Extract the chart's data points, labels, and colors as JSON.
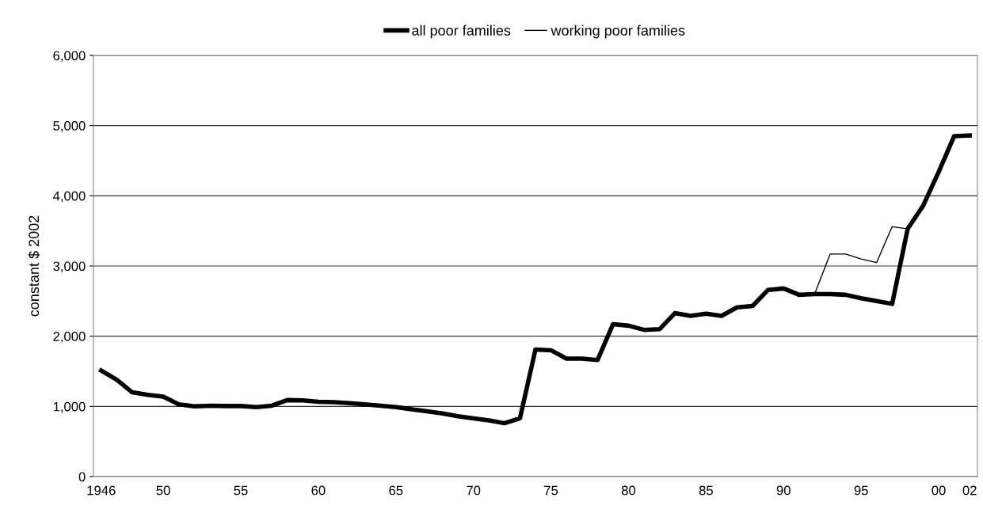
{
  "chart_data": {
    "type": "line",
    "ylabel": "constant $ 2002",
    "legend": "top",
    "grid": "y",
    "marker": "none",
    "categories": [
      "1946",
      null,
      null,
      null,
      "50",
      null,
      null,
      null,
      null,
      "55",
      null,
      null,
      null,
      null,
      "60",
      null,
      null,
      null,
      null,
      "65",
      null,
      null,
      null,
      null,
      "70",
      null,
      null,
      null,
      null,
      "75",
      null,
      null,
      null,
      null,
      "80",
      null,
      null,
      null,
      null,
      "85",
      null,
      null,
      null,
      null,
      "90",
      null,
      null,
      null,
      null,
      "95",
      null,
      null,
      null,
      null,
      "00",
      null,
      "02"
    ],
    "ylim": [
      0,
      6000
    ],
    "yticks": [
      0,
      {
        "value": 1000,
        "label": "1,000"
      },
      {
        "value": 2000,
        "label": "2,000"
      },
      {
        "value": 3000,
        "label": "3,000"
      },
      {
        "value": 4000,
        "label": "4,000"
      },
      {
        "value": 5000,
        "label": "5,000"
      },
      {
        "value": 6000,
        "label": "6,000"
      }
    ],
    "series": [
      {
        "name": "all poor families",
        "color": "#000000",
        "values": [
          1510,
          1380,
          1200,
          1165,
          1140,
          1030,
          1000,
          1010,
          1005,
          1005,
          990,
          1010,
          1090,
          1085,
          1065,
          1060,
          1045,
          1030,
          1010,
          990,
          960,
          930,
          900,
          860,
          830,
          800,
          760,
          830,
          1810,
          1800,
          1680,
          1680,
          1660,
          2170,
          2150,
          2090,
          2100,
          2330,
          2290,
          2320,
          2290,
          2410,
          2430,
          2660,
          2680,
          2590,
          2600,
          2600,
          2590,
          2540,
          2500,
          2460,
          3530,
          3860,
          4340,
          4850,
          4860
        ]
      },
      {
        "name": "working poor families",
        "color": "#000000",
        "values": [
          null,
          null,
          null,
          null,
          null,
          null,
          null,
          null,
          null,
          null,
          null,
          null,
          null,
          null,
          null,
          null,
          null,
          null,
          null,
          null,
          null,
          null,
          null,
          null,
          null,
          null,
          null,
          null,
          null,
          null,
          null,
          null,
          null,
          null,
          null,
          null,
          null,
          null,
          null,
          null,
          null,
          null,
          null,
          null,
          null,
          null,
          2600,
          3170,
          3170,
          3100,
          3050,
          3560,
          3530,
          null,
          null,
          null,
          null
        ]
      }
    ]
  }
}
